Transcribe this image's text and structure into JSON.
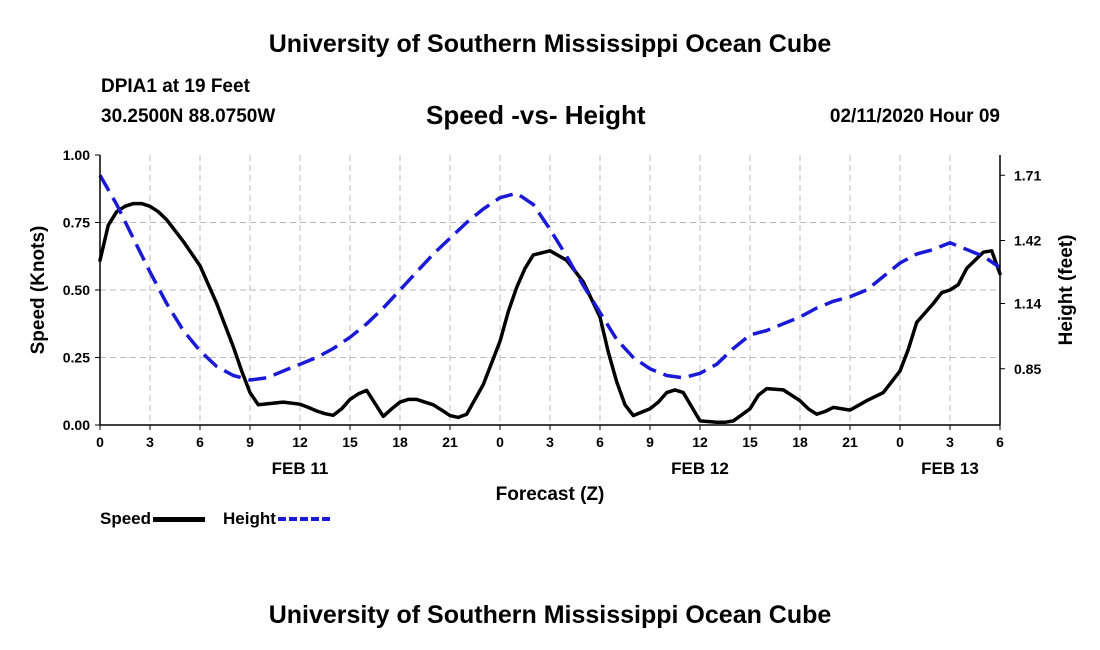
{
  "header": {
    "title_top": "University of Southern Mississippi Ocean Cube",
    "title_bottom": "University of Southern Mississippi Ocean Cube",
    "station": "DPIA1 at 19 Feet",
    "location": "30.2500N 88.0750W",
    "datetime": "02/11/2020 Hour 09"
  },
  "legend": {
    "speed_label": "Speed",
    "height_label": "Height"
  },
  "chart_data": {
    "type": "line",
    "title": "Speed -vs- Height",
    "xlabel": "Forecast (Z)",
    "ylabel": "Speed (Knots)",
    "y2label": "Height (feet)",
    "xlim": [
      0,
      54
    ],
    "ylim": [
      0,
      1.0
    ],
    "y2lim": [
      0.6,
      1.8
    ],
    "colors": {
      "speed": "#000000",
      "height": "#1a1ad6",
      "grid": "#bbbbbb"
    },
    "x_ticks": [
      {
        "x": 0,
        "label": "0"
      },
      {
        "x": 3,
        "label": "3"
      },
      {
        "x": 6,
        "label": "6"
      },
      {
        "x": 9,
        "label": "9"
      },
      {
        "x": 12,
        "label": "12"
      },
      {
        "x": 15,
        "label": "15"
      },
      {
        "x": 18,
        "label": "18"
      },
      {
        "x": 21,
        "label": "21"
      },
      {
        "x": 24,
        "label": "0"
      },
      {
        "x": 27,
        "label": "3"
      },
      {
        "x": 30,
        "label": "6"
      },
      {
        "x": 33,
        "label": "9"
      },
      {
        "x": 36,
        "label": "12"
      },
      {
        "x": 39,
        "label": "15"
      },
      {
        "x": 42,
        "label": "18"
      },
      {
        "x": 45,
        "label": "21"
      },
      {
        "x": 48,
        "label": "0"
      },
      {
        "x": 51,
        "label": "3"
      },
      {
        "x": 54,
        "label": "6"
      }
    ],
    "day_labels": [
      {
        "x": 12,
        "label": "FEB 11"
      },
      {
        "x": 36,
        "label": "FEB 12"
      },
      {
        "x": 51,
        "label": "FEB 13"
      }
    ],
    "y_ticks": [
      {
        "y": 0.0,
        "label": "0.00"
      },
      {
        "y": 0.25,
        "label": "0.25"
      },
      {
        "y": 0.5,
        "label": "0.50"
      },
      {
        "y": 0.75,
        "label": "0.75"
      },
      {
        "y": 1.0,
        "label": "1.00"
      }
    ],
    "y2_ticks": [
      {
        "y": 0.85,
        "label": "0.85"
      },
      {
        "y": 1.14,
        "label": "1.14"
      },
      {
        "y": 1.42,
        "label": "1.42"
      },
      {
        "y": 1.71,
        "label": "1.71"
      }
    ],
    "series": [
      {
        "name": "Speed",
        "axis": "left",
        "x": [
          0,
          0.5,
          1,
          1.5,
          2,
          2.5,
          3,
          3.5,
          4,
          4.5,
          5,
          6,
          7,
          8,
          8.5,
          9,
          9.5,
          10,
          11,
          12,
          12.5,
          13,
          13.5,
          14,
          14.5,
          15,
          15.5,
          16,
          16.5,
          17,
          17.5,
          18,
          18.5,
          19,
          20,
          20.5,
          21,
          21.5,
          22,
          23,
          24,
          24.5,
          25,
          25.5,
          26,
          27,
          28,
          29,
          30,
          30.5,
          31,
          31.5,
          32,
          33,
          33.5,
          34,
          34.5,
          35,
          36,
          37,
          37.5,
          38,
          39,
          39.5,
          40,
          41,
          42,
          42.5,
          43,
          43.5,
          44,
          45,
          46,
          47,
          48,
          48.5,
          49,
          50,
          50.5,
          51,
          51.5,
          52,
          53,
          53.5,
          54
        ],
        "values": [
          0.61,
          0.74,
          0.79,
          0.81,
          0.82,
          0.82,
          0.81,
          0.79,
          0.76,
          0.72,
          0.68,
          0.59,
          0.45,
          0.29,
          0.2,
          0.12,
          0.075,
          0.078,
          0.085,
          0.077,
          0.065,
          0.052,
          0.042,
          0.036,
          0.06,
          0.095,
          0.115,
          0.128,
          0.08,
          0.032,
          0.06,
          0.085,
          0.095,
          0.095,
          0.075,
          0.055,
          0.035,
          0.028,
          0.04,
          0.15,
          0.31,
          0.42,
          0.51,
          0.58,
          0.63,
          0.645,
          0.61,
          0.53,
          0.4,
          0.27,
          0.16,
          0.075,
          0.035,
          0.06,
          0.085,
          0.12,
          0.13,
          0.12,
          0.015,
          0.01,
          0.01,
          0.015,
          0.06,
          0.11,
          0.135,
          0.13,
          0.09,
          0.06,
          0.04,
          0.05,
          0.065,
          0.055,
          0.09,
          0.12,
          0.2,
          0.28,
          0.38,
          0.45,
          0.49,
          0.5,
          0.52,
          0.58,
          0.64,
          0.645,
          0.56
        ]
      },
      {
        "name": "Height",
        "axis": "right",
        "x": [
          0,
          1,
          2,
          3,
          4,
          5,
          6,
          7,
          8,
          9,
          10,
          11,
          12,
          13,
          14,
          15,
          16,
          17,
          18,
          19,
          20,
          21,
          22,
          23,
          24,
          25,
          26,
          27,
          28,
          29,
          30,
          31,
          32,
          33,
          34,
          35,
          36,
          37,
          38,
          39,
          40,
          41,
          42,
          43,
          44,
          45,
          46,
          47,
          48,
          49,
          50,
          51,
          52,
          53,
          54
        ],
        "values": [
          1.71,
          1.58,
          1.43,
          1.28,
          1.14,
          1.02,
          0.93,
          0.86,
          0.82,
          0.8,
          0.81,
          0.84,
          0.87,
          0.9,
          0.94,
          0.99,
          1.05,
          1.12,
          1.2,
          1.28,
          1.36,
          1.43,
          1.5,
          1.56,
          1.61,
          1.63,
          1.58,
          1.47,
          1.35,
          1.22,
          1.1,
          0.98,
          0.9,
          0.85,
          0.82,
          0.81,
          0.83,
          0.87,
          0.94,
          1.0,
          1.02,
          1.05,
          1.08,
          1.12,
          1.15,
          1.17,
          1.2,
          1.26,
          1.32,
          1.36,
          1.38,
          1.41,
          1.38,
          1.35,
          1.3
        ]
      }
    ]
  }
}
